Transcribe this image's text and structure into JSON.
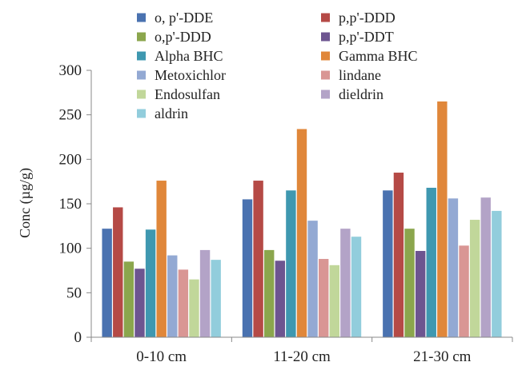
{
  "chart_data": {
    "type": "bar",
    "title": "",
    "xlabel": "",
    "ylabel": "Conc (µg/g)",
    "ylim": [
      0,
      300
    ],
    "yticks": [
      0,
      50,
      100,
      150,
      200,
      250,
      300
    ],
    "grid": false,
    "legend_position": "top",
    "categories": [
      "0-10 cm",
      "11-20 cm",
      "21-30 cm"
    ],
    "series": [
      {
        "name": "o, p'-DDE",
        "color": "#4a72b0",
        "values": [
          122,
          155,
          165
        ]
      },
      {
        "name": "p,p'-DDD",
        "color": "#b54a46",
        "values": [
          146,
          176,
          185
        ]
      },
      {
        "name": "o,p'-DDD",
        "color": "#8ba64d",
        "values": [
          85,
          98,
          122
        ]
      },
      {
        "name": "p,p'-DDT",
        "color": "#6d5590",
        "values": [
          77,
          86,
          97
        ]
      },
      {
        "name": "Alpha BHC",
        "color": "#3f98b0",
        "values": [
          121,
          165,
          168
        ]
      },
      {
        "name": "Gamma BHC",
        "color": "#e0873a",
        "values": [
          176,
          234,
          265
        ]
      },
      {
        "name": "Metoxichlor",
        "color": "#93a9d3",
        "values": [
          92,
          131,
          156
        ]
      },
      {
        "name": "lindane",
        "color": "#d99694",
        "values": [
          76,
          88,
          103
        ]
      },
      {
        "name": "Endosulfan",
        "color": "#c1d79a",
        "values": [
          65,
          81,
          132
        ]
      },
      {
        "name": "dieldrin",
        "color": "#b3a3c7",
        "values": [
          98,
          122,
          157
        ]
      },
      {
        "name": "aldrin",
        "color": "#92cddc",
        "values": [
          87,
          113,
          142
        ]
      }
    ]
  }
}
